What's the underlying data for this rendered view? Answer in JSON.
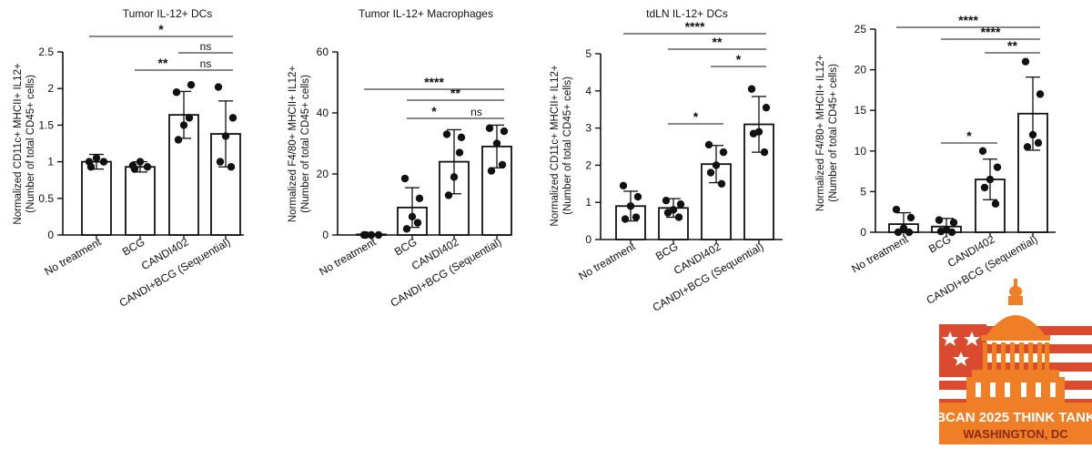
{
  "colors": {
    "ink": "#111111",
    "logo_orange": "#F07E26",
    "logo_red": "#D94A2E",
    "logo_white": "#ffffff"
  },
  "logo": {
    "text_line1": "BCAN 2025 THINK TANK",
    "text_line2": "WASHINGTON, DC"
  },
  "chart_data": [
    {
      "type": "bar",
      "title": "Tumor IL-12+ DCs",
      "ylabel_line1": "Normalized CD11c+ MHCII+ IL12+",
      "ylabel_line2": "(Number of total CD45+ cells)",
      "categories": [
        "No treatment",
        "BCG",
        "CANDI402",
        "CANDI+BCG (Sequential)"
      ],
      "values": [
        1.0,
        0.93,
        1.64,
        1.38
      ],
      "errors": [
        0.1,
        0.07,
        0.32,
        0.45
      ],
      "points": [
        [
          1.0,
          1.0,
          1.05,
          0.93
        ],
        [
          0.95,
          0.93,
          1.0,
          0.9
        ],
        [
          1.95,
          2.05,
          1.5,
          1.3,
          1.6
        ],
        [
          2.02,
          1.6,
          1.35,
          1.0,
          0.93
        ]
      ],
      "ylim": [
        0,
        2.5
      ],
      "yticks": [
        "0",
        "0.5",
        "1",
        "1.5",
        "2",
        "2.5"
      ],
      "significance": [
        {
          "from": 0,
          "to": 3,
          "label": "*"
        },
        {
          "from": 2,
          "to": 3,
          "label": "ns"
        },
        {
          "from": 1,
          "to": 2,
          "label": "**"
        },
        {
          "from": 2,
          "to": 3,
          "label": "ns"
        }
      ]
    },
    {
      "type": "bar",
      "title": "Tumor IL-12+ Macrophages",
      "ylabel_line1": "Normalized F4/80+ MHCII+ IL12+",
      "ylabel_line2": "(Number of total CD45+ cells)",
      "categories": [
        "No treatment",
        "BCG",
        "CANDI402",
        "CANDI+BCG (Sequential)"
      ],
      "values": [
        0.2,
        9,
        24,
        29
      ],
      "errors": [
        0,
        6.5,
        10.5,
        7
      ],
      "points": [
        [
          0,
          0,
          0,
          0
        ],
        [
          18.5,
          12,
          6,
          2,
          4
        ],
        [
          33,
          32,
          19,
          13,
          27
        ],
        [
          35,
          34,
          30,
          21,
          23
        ]
      ],
      "ylim": [
        0,
        60
      ],
      "yticks": [
        "0",
        "20",
        "40",
        "60"
      ],
      "significance": [
        {
          "from": 0,
          "to": 3,
          "label": "****"
        },
        {
          "from": 1,
          "to": 3,
          "label": "**"
        },
        {
          "from": 1,
          "to": 2,
          "label": "*"
        },
        {
          "from": 2,
          "to": 3,
          "label": "ns"
        }
      ]
    },
    {
      "type": "bar",
      "title": "tdLN IL-12+ DCs",
      "ylabel_line1": "Normalized CD11c+ MHCII+ IL12+",
      "ylabel_line2": "(Number of total CD45+ cells)",
      "categories": [
        "No treatment",
        "BCG",
        "CANDI402",
        "CANDI+BCG (Sequential)"
      ],
      "values": [
        0.9,
        0.85,
        2.03,
        3.1
      ],
      "errors": [
        0.4,
        0.25,
        0.5,
        0.75
      ],
      "points": [
        [
          1.45,
          1.15,
          0.9,
          0.55,
          0.6
        ],
        [
          1.05,
          0.95,
          0.8,
          0.72,
          0.6
        ],
        [
          2.55,
          2.35,
          2.0,
          1.8,
          1.5
        ],
        [
          4.05,
          3.55,
          2.9,
          2.85,
          2.35
        ]
      ],
      "ylim": [
        0,
        5
      ],
      "yticks": [
        "0",
        "1",
        "2",
        "3",
        "4",
        "5"
      ],
      "significance": [
        {
          "from": 0,
          "to": 3,
          "label": "****"
        },
        {
          "from": 1,
          "to": 3,
          "label": "**"
        },
        {
          "from": 2,
          "to": 3,
          "label": "*"
        },
        {
          "from": 1,
          "to": 2,
          "label": "*"
        }
      ]
    },
    {
      "type": "bar",
      "title": "",
      "ylabel_line1": "Normalized F4/80+ MHCII+ IL12+",
      "ylabel_line2": "(Number of total CD45+ cells)",
      "categories": [
        "No treatment",
        "BCG",
        "CANDI402",
        "CANDI+BCG (Sequential)"
      ],
      "values": [
        1.0,
        0.7,
        6.5,
        14.6
      ],
      "errors": [
        1.4,
        1.0,
        2.5,
        4.5
      ],
      "points": [
        [
          2.8,
          1.8,
          0.5,
          0,
          0
        ],
        [
          1.5,
          1.2,
          0.3,
          0.1,
          0
        ],
        [
          10,
          8,
          6.5,
          5.5,
          3.5
        ],
        [
          21,
          17,
          12,
          10.5,
          11
        ]
      ],
      "ylim": [
        0,
        25
      ],
      "yticks": [
        "0",
        "5",
        "10",
        "15",
        "20",
        "25"
      ],
      "significance": [
        {
          "from": 0,
          "to": 3,
          "label": "****"
        },
        {
          "from": 1,
          "to": 3,
          "label": "****"
        },
        {
          "from": 2,
          "to": 3,
          "label": "**"
        },
        {
          "from": 1,
          "to": 2,
          "label": "*"
        }
      ]
    }
  ]
}
